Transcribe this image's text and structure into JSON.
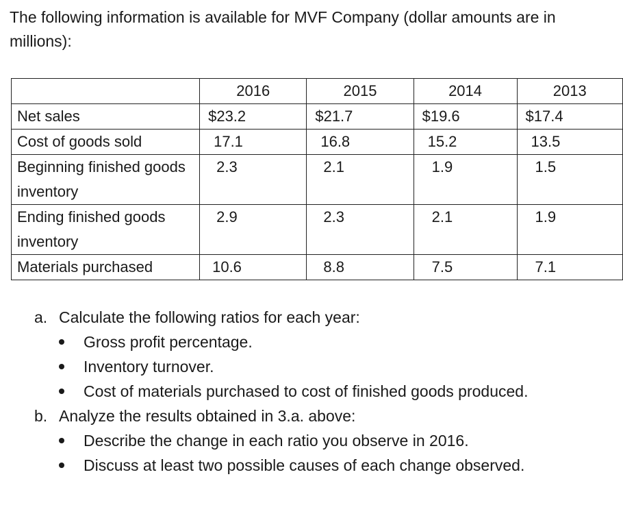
{
  "intro": "The following information is available for MVF Company (dollar amounts are in millions):",
  "table": {
    "headers": [
      "",
      "2016",
      "2015",
      "2014",
      "2013"
    ],
    "rows": [
      {
        "label": "Net sales",
        "values": [
          "$23.2",
          "$21.7",
          "$19.6",
          "$17.4"
        ]
      },
      {
        "label": "Cost of goods sold",
        "values": [
          "17.1",
          "16.8",
          "15.2",
          "13.5"
        ]
      },
      {
        "label": "Beginning finished goods inventory",
        "values": [
          "2.3",
          "2.1",
          "1.9",
          "1.5"
        ]
      },
      {
        "label": "Ending finished goods inventory",
        "values": [
          "2.9",
          "2.3",
          "2.1",
          "1.9"
        ]
      },
      {
        "label": "Materials purchased",
        "values": [
          "10.6",
          "8.8",
          "7.5",
          "7.1"
        ]
      }
    ]
  },
  "questions": [
    {
      "marker": "a.",
      "text": "Calculate the following ratios for each year:",
      "bullets": [
        "Gross profit percentage.",
        "Inventory turnover.",
        "Cost of materials purchased to cost of finished goods produced."
      ]
    },
    {
      "marker": "b.",
      "text": "Analyze the results obtained in 3.a. above:",
      "bullets": [
        "Describe the change in each ratio you observe in 2016.",
        "Discuss at least two possible causes of each change observed."
      ]
    }
  ]
}
